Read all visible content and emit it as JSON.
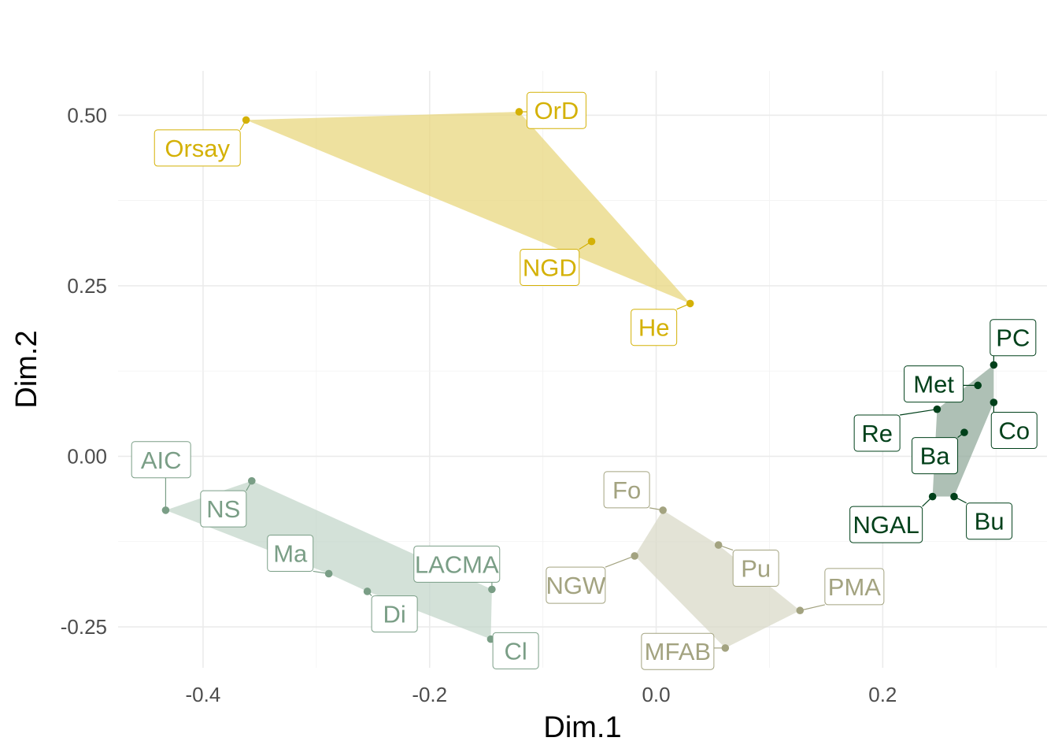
{
  "chart_data": {
    "type": "scatter",
    "title": "",
    "xlabel": "Dim.1",
    "ylabel": "Dim.2",
    "xlim": [
      -0.475,
      0.345
    ],
    "ylim": [
      -0.31,
      0.565
    ],
    "x_ticks": [
      {
        "value": -0.4,
        "label": "-0.4"
      },
      {
        "value": -0.2,
        "label": "-0.2"
      },
      {
        "value": 0.0,
        "label": "0.0"
      },
      {
        "value": 0.2,
        "label": "0.2"
      }
    ],
    "y_ticks": [
      {
        "value": -0.25,
        "label": "-0.25"
      },
      {
        "value": 0.0,
        "label": "0.00"
      },
      {
        "value": 0.25,
        "label": "0.25"
      },
      {
        "value": 0.5,
        "label": "0.50"
      }
    ],
    "grid": true,
    "legend": "none",
    "groups": [
      {
        "color": "#d4b106",
        "fill": "#e8d67a",
        "label_fill": "#ffffff",
        "points": [
          {
            "label": "Orsay",
            "x": -0.362,
            "y": 0.493,
            "lx": -0.405,
            "ly": 0.452
          },
          {
            "label": "OrD",
            "x": -0.121,
            "y": 0.505,
            "lx": -0.088,
            "ly": 0.507
          },
          {
            "label": "NGD",
            "x": -0.057,
            "y": 0.315,
            "lx": -0.094,
            "ly": 0.277
          },
          {
            "label": "He",
            "x": 0.03,
            "y": 0.224,
            "lx": -0.002,
            "ly": 0.189
          }
        ],
        "hull": [
          "Orsay",
          "OrD",
          "He"
        ]
      },
      {
        "color": "#7a9e86",
        "fill": "#c2d6c9",
        "label_fill": "#ffffff",
        "points": [
          {
            "label": "AIC",
            "x": -0.433,
            "y": -0.079,
            "lx": -0.437,
            "ly": -0.005
          },
          {
            "label": "NS",
            "x": -0.357,
            "y": -0.036,
            "lx": -0.382,
            "ly": -0.077
          },
          {
            "label": "Ma",
            "x": -0.289,
            "y": -0.172,
            "lx": -0.323,
            "ly": -0.142
          },
          {
            "label": "Di",
            "x": -0.255,
            "y": -0.198,
            "lx": -0.231,
            "ly": -0.231
          },
          {
            "label": "LACMA",
            "x": -0.145,
            "y": -0.195,
            "lx": -0.176,
            "ly": -0.158
          },
          {
            "label": "Cl",
            "x": -0.146,
            "y": -0.268,
            "lx": -0.124,
            "ly": -0.285
          }
        ],
        "hull": [
          "AIC",
          "NS",
          "LACMA",
          "Cl",
          "Di",
          "Ma"
        ]
      },
      {
        "color": "#a3a380",
        "fill": "#d8d8c6",
        "label_fill": "#ffffff",
        "points": [
          {
            "label": "Fo",
            "x": 0.006,
            "y": -0.079,
            "lx": -0.026,
            "ly": -0.049
          },
          {
            "label": "Pu",
            "x": 0.055,
            "y": -0.13,
            "lx": 0.088,
            "ly": -0.164
          },
          {
            "label": "NGW",
            "x": -0.019,
            "y": -0.146,
            "lx": -0.071,
            "ly": -0.189
          },
          {
            "label": "PMA",
            "x": 0.127,
            "y": -0.226,
            "lx": 0.175,
            "ly": -0.191
          },
          {
            "label": "MFAB",
            "x": 0.061,
            "y": -0.281,
            "lx": 0.019,
            "ly": -0.286
          }
        ],
        "hull": [
          "Fo",
          "Pu",
          "PMA",
          "MFAB",
          "NGW"
        ]
      },
      {
        "color": "#00401a",
        "fill": "#8fa898",
        "label_fill": "#ffffff",
        "points": [
          {
            "label": "PC",
            "x": 0.298,
            "y": 0.134,
            "lx": 0.315,
            "ly": 0.174
          },
          {
            "label": "Met",
            "x": 0.284,
            "y": 0.104,
            "lx": 0.245,
            "ly": 0.106
          },
          {
            "label": "Co",
            "x": 0.298,
            "y": 0.079,
            "lx": 0.316,
            "ly": 0.038
          },
          {
            "label": "Re",
            "x": 0.248,
            "y": 0.069,
            "lx": 0.195,
            "ly": 0.034
          },
          {
            "label": "Ba",
            "x": 0.272,
            "y": 0.035,
            "lx": 0.246,
            "ly": 0.001
          },
          {
            "label": "NGAL",
            "x": 0.244,
            "y": -0.059,
            "lx": 0.203,
            "ly": -0.1
          },
          {
            "label": "Bu",
            "x": 0.263,
            "y": -0.059,
            "lx": 0.294,
            "ly": -0.095
          }
        ],
        "hull": [
          "PC",
          "Co",
          "Bu",
          "NGAL",
          "Re"
        ]
      }
    ]
  }
}
